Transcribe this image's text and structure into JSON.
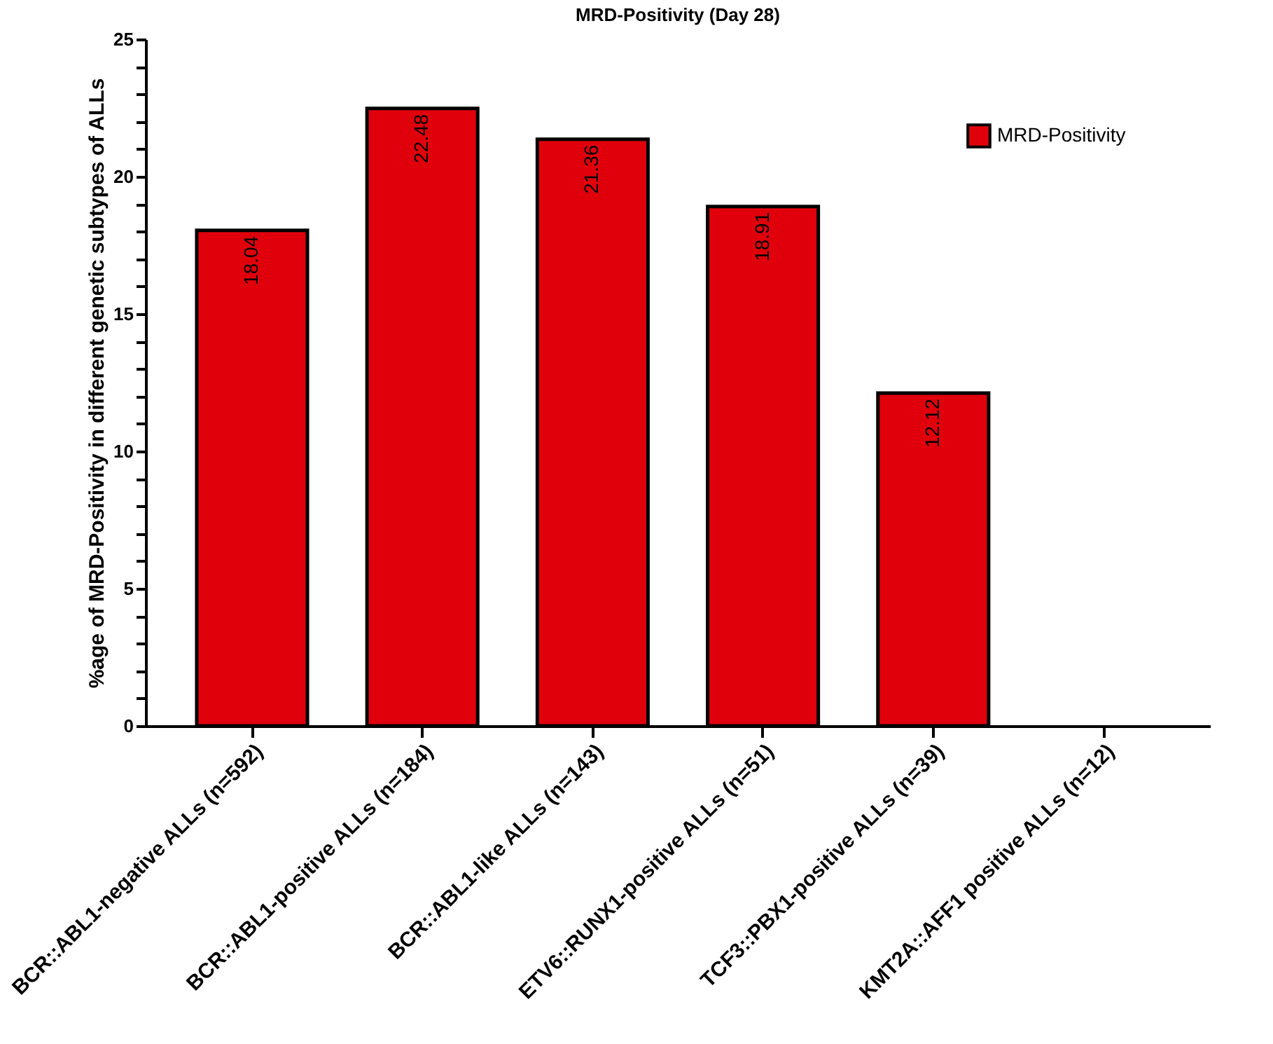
{
  "chart_data": {
    "type": "bar",
    "title": "MRD-Positivity (Day 28)",
    "ylabel": "%age of MRD-Positivity in different genetic subtypes of ALLs",
    "categories": [
      "BCR::ABL1-negative ALLs (n=592)",
      "BCR::ABL1-positive ALLs (n=184)",
      "BCR::ABL1-like ALLs (n=143)",
      "ETV6::RUNX1-positive ALLs (n=51)",
      "TCF3::PBX1-positive ALLs (n=39)",
      "KMT2A::AFF1 positive ALLs (n=12)"
    ],
    "series": [
      {
        "name": "MRD-Positivity",
        "color": "#e0000c",
        "values": [
          18.04,
          22.48,
          21.36,
          18.91,
          12.12,
          0
        ],
        "value_labels": [
          "18.04",
          "22.48",
          "21.36",
          "18.91",
          "12.12",
          null
        ]
      }
    ],
    "ylim": [
      0,
      25
    ],
    "yticks": [
      0,
      {
        "value": 1,
        "label": null
      },
      {
        "value": 2,
        "label": null
      },
      {
        "value": 3,
        "label": null
      },
      {
        "value": 4,
        "label": null
      },
      5,
      {
        "value": 6,
        "label": null
      },
      {
        "value": 7,
        "label": null
      },
      {
        "value": 8,
        "label": null
      },
      {
        "value": 9,
        "label": null
      },
      10,
      {
        "value": 11,
        "label": null
      },
      {
        "value": 12,
        "label": null
      },
      {
        "value": 13,
        "label": null
      },
      {
        "value": 14,
        "label": null
      },
      15,
      {
        "value": 16,
        "label": null
      },
      {
        "value": 17,
        "label": null
      },
      {
        "value": 18,
        "label": null
      },
      {
        "value": 19,
        "label": null
      },
      20,
      {
        "value": 21,
        "label": null
      },
      {
        "value": 22,
        "label": null
      },
      {
        "value": 23,
        "label": null
      },
      {
        "value": 24,
        "label": null
      },
      25
    ],
    "legend": "top right",
    "grid": false
  }
}
